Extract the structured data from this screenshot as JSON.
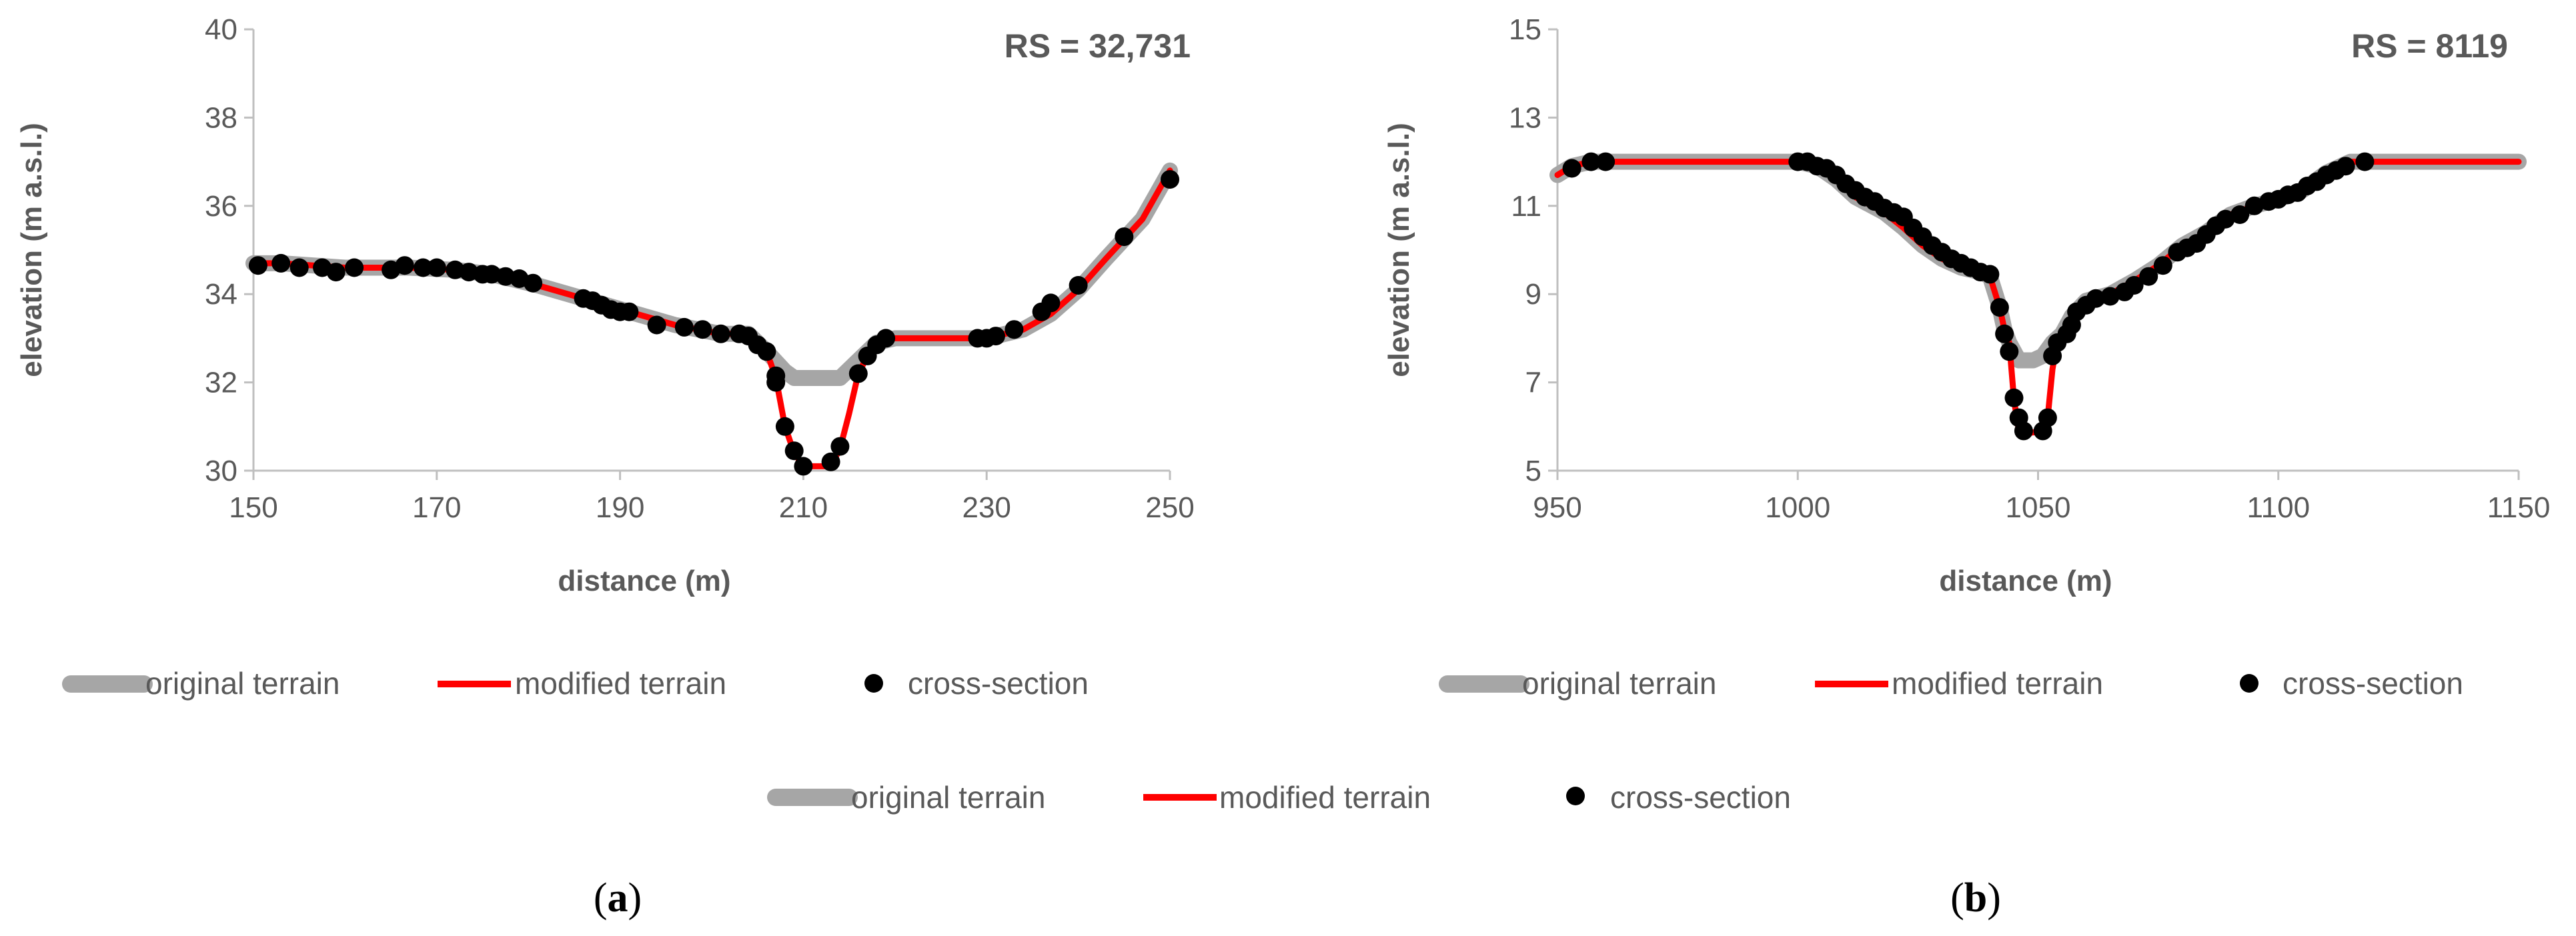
{
  "colors": {
    "original_terrain": "#a6a6a6",
    "modified_terrain": "#ff0000",
    "cross_section": "#000000",
    "axis": "#bfbfbf",
    "text": "#595959"
  },
  "shared_legend": {
    "original": "original terrain",
    "modified": "modified terrain",
    "points": "cross-section"
  },
  "chart_data": [
    {
      "type": "line",
      "panel_label": "a",
      "annotation": "RS = 32,731",
      "xlabel": "distance (m)",
      "ylabel": "elevation (m a.s.l.)",
      "xlim": [
        150,
        250
      ],
      "ylim": [
        30,
        40
      ],
      "x_ticks": [
        150,
        170,
        190,
        210,
        230,
        250
      ],
      "y_ticks": [
        30,
        32,
        34,
        36,
        38,
        40
      ],
      "grid": false,
      "legend": {
        "position": "bottom",
        "entries": [
          "original terrain",
          "modified terrain",
          "cross-section"
        ]
      },
      "series": [
        {
          "name": "original terrain",
          "kind": "line",
          "points": [
            [
              150,
              34.7
            ],
            [
              153,
              34.7
            ],
            [
              160,
              34.6
            ],
            [
              167,
              34.6
            ],
            [
              172,
              34.55
            ],
            [
              176,
              34.45
            ],
            [
              181,
              34.2
            ],
            [
              186,
              33.9
            ],
            [
              191,
              33.6
            ],
            [
              196,
              33.3
            ],
            [
              201,
              33.1
            ],
            [
              204,
              33.1
            ],
            [
              206,
              32.7
            ],
            [
              208,
              32.25
            ],
            [
              209,
              32.1
            ],
            [
              214,
              32.1
            ],
            [
              216,
              32.5
            ],
            [
              218,
              32.9
            ],
            [
              220,
              33.0
            ],
            [
              230,
              33.0
            ],
            [
              234,
              33.2
            ],
            [
              237,
              33.55
            ],
            [
              240,
              34.1
            ],
            [
              243,
              34.8
            ],
            [
              247,
              35.7
            ],
            [
              250,
              36.8
            ]
          ]
        },
        {
          "name": "modified terrain",
          "kind": "line",
          "points": [
            [
              150,
              34.7
            ],
            [
              153,
              34.7
            ],
            [
              160,
              34.6
            ],
            [
              167,
              34.6
            ],
            [
              172,
              34.55
            ],
            [
              176,
              34.45
            ],
            [
              181,
              34.2
            ],
            [
              186,
              33.9
            ],
            [
              191,
              33.6
            ],
            [
              196,
              33.3
            ],
            [
              201,
              33.1
            ],
            [
              204,
              33.1
            ],
            [
              206,
              32.7
            ],
            [
              207,
              32.1
            ],
            [
              208,
              31.0
            ],
            [
              209,
              30.4
            ],
            [
              210,
              30.1
            ],
            [
              213,
              30.1
            ],
            [
              214,
              30.5
            ],
            [
              215,
              31.3
            ],
            [
              216,
              32.2
            ],
            [
              217,
              32.6
            ],
            [
              218,
              32.85
            ],
            [
              219,
              33.0
            ],
            [
              230,
              33.0
            ],
            [
              234,
              33.2
            ],
            [
              237,
              33.55
            ],
            [
              240,
              34.1
            ],
            [
              243,
              34.8
            ],
            [
              247,
              35.7
            ],
            [
              250,
              36.8
            ]
          ]
        },
        {
          "name": "cross-section",
          "kind": "scatter",
          "points": [
            [
              150.5,
              34.65
            ],
            [
              153,
              34.7
            ],
            [
              155,
              34.6
            ],
            [
              157.5,
              34.6
            ],
            [
              159,
              34.5
            ],
            [
              161,
              34.6
            ],
            [
              165,
              34.55
            ],
            [
              166.5,
              34.65
            ],
            [
              168.5,
              34.6
            ],
            [
              170,
              34.6
            ],
            [
              172,
              34.55
            ],
            [
              173.5,
              34.5
            ],
            [
              175,
              34.45
            ],
            [
              176,
              34.45
            ],
            [
              177.5,
              34.4
            ],
            [
              179,
              34.35
            ],
            [
              180.5,
              34.25
            ],
            [
              186,
              33.9
            ],
            [
              187,
              33.85
            ],
            [
              188,
              33.75
            ],
            [
              189,
              33.65
            ],
            [
              190,
              33.6
            ],
            [
              191,
              33.6
            ],
            [
              194,
              33.3
            ],
            [
              197,
              33.25
            ],
            [
              199,
              33.2
            ],
            [
              201,
              33.1
            ],
            [
              203,
              33.1
            ],
            [
              204,
              33.05
            ],
            [
              205,
              32.85
            ],
            [
              206,
              32.7
            ],
            [
              207,
              32.15
            ],
            [
              207,
              32.0
            ],
            [
              208,
              31.0
            ],
            [
              209,
              30.45
            ],
            [
              210,
              30.1
            ],
            [
              213,
              30.2
            ],
            [
              214,
              30.55
            ],
            [
              216,
              32.2
            ],
            [
              217,
              32.6
            ],
            [
              218,
              32.85
            ],
            [
              219,
              33.0
            ],
            [
              229,
              33.0
            ],
            [
              230,
              33.0
            ],
            [
              231,
              33.05
            ],
            [
              233,
              33.2
            ],
            [
              236,
              33.6
            ],
            [
              237,
              33.8
            ],
            [
              240,
              34.2
            ],
            [
              245,
              35.3
            ],
            [
              250,
              36.6
            ]
          ]
        }
      ]
    },
    {
      "type": "line",
      "panel_label": "b",
      "annotation": "RS = 8119",
      "xlabel": "distance (m)",
      "ylabel": "elevation (m a.s.l.)",
      "xlim": [
        950,
        1150
      ],
      "ylim": [
        5,
        15
      ],
      "x_ticks": [
        950,
        1000,
        1050,
        1100,
        1150
      ],
      "y_ticks": [
        5,
        7,
        9,
        11,
        13,
        15
      ],
      "grid": false,
      "legend": {
        "position": "bottom",
        "entries": [
          "original terrain",
          "modified terrain",
          "cross-section"
        ]
      },
      "series": [
        {
          "name": "original terrain",
          "kind": "line",
          "points": [
            [
              950,
              11.7
            ],
            [
              953,
              11.9
            ],
            [
              957,
              12.0
            ],
            [
              1000,
              12.0
            ],
            [
              1004,
              11.9
            ],
            [
              1008,
              11.6
            ],
            [
              1012,
              11.2
            ],
            [
              1018,
              10.85
            ],
            [
              1022,
              10.5
            ],
            [
              1026,
              10.1
            ],
            [
              1030,
              9.8
            ],
            [
              1034,
              9.6
            ],
            [
              1038,
              9.5
            ],
            [
              1040,
              9.4
            ],
            [
              1042,
              8.7
            ],
            [
              1043,
              8.2
            ],
            [
              1044,
              7.9
            ],
            [
              1046,
              7.5
            ],
            [
              1049,
              7.5
            ],
            [
              1051,
              7.6
            ],
            [
              1053,
              7.9
            ],
            [
              1055,
              8.1
            ],
            [
              1057,
              8.5
            ],
            [
              1060,
              8.85
            ],
            [
              1065,
              9.0
            ],
            [
              1070,
              9.3
            ],
            [
              1075,
              9.65
            ],
            [
              1080,
              10.1
            ],
            [
              1085,
              10.4
            ],
            [
              1090,
              10.8
            ],
            [
              1095,
              11.0
            ],
            [
              1100,
              11.15
            ],
            [
              1105,
              11.35
            ],
            [
              1110,
              11.75
            ],
            [
              1115,
              12.0
            ],
            [
              1150,
              12.0
            ]
          ]
        },
        {
          "name": "modified terrain",
          "kind": "line",
          "points": [
            [
              950,
              11.7
            ],
            [
              953,
              11.9
            ],
            [
              957,
              12.0
            ],
            [
              1000,
              12.0
            ],
            [
              1004,
              11.9
            ],
            [
              1008,
              11.6
            ],
            [
              1012,
              11.2
            ],
            [
              1018,
              10.85
            ],
            [
              1022,
              10.5
            ],
            [
              1026,
              10.1
            ],
            [
              1030,
              9.8
            ],
            [
              1034,
              9.6
            ],
            [
              1038,
              9.5
            ],
            [
              1040,
              9.4
            ],
            [
              1042,
              8.7
            ],
            [
              1043,
              8.2
            ],
            [
              1044,
              7.9
            ],
            [
              1045,
              6.6
            ],
            [
              1046,
              5.9
            ],
            [
              1048,
              5.85
            ],
            [
              1051,
              5.9
            ],
            [
              1052,
              6.2
            ],
            [
              1053,
              7.3
            ],
            [
              1054,
              7.9
            ],
            [
              1055,
              8.1
            ],
            [
              1057,
              8.5
            ],
            [
              1060,
              8.85
            ],
            [
              1065,
              9.0
            ],
            [
              1070,
              9.3
            ],
            [
              1075,
              9.65
            ],
            [
              1080,
              10.1
            ],
            [
              1085,
              10.4
            ],
            [
              1090,
              10.8
            ],
            [
              1095,
              11.0
            ],
            [
              1100,
              11.15
            ],
            [
              1105,
              11.35
            ],
            [
              1110,
              11.75
            ],
            [
              1115,
              12.0
            ],
            [
              1150,
              12.0
            ]
          ]
        },
        {
          "name": "cross-section",
          "kind": "scatter",
          "points": [
            [
              953,
              11.85
            ],
            [
              957,
              12.0
            ],
            [
              960,
              12.0
            ],
            [
              1000,
              12.0
            ],
            [
              1002,
              12.0
            ],
            [
              1004,
              11.9
            ],
            [
              1006,
              11.85
            ],
            [
              1008,
              11.7
            ],
            [
              1010,
              11.5
            ],
            [
              1012,
              11.35
            ],
            [
              1014,
              11.2
            ],
            [
              1016,
              11.1
            ],
            [
              1018,
              10.95
            ],
            [
              1020,
              10.85
            ],
            [
              1022,
              10.75
            ],
            [
              1024,
              10.5
            ],
            [
              1026,
              10.3
            ],
            [
              1028,
              10.1
            ],
            [
              1030,
              9.95
            ],
            [
              1032,
              9.8
            ],
            [
              1034,
              9.7
            ],
            [
              1036,
              9.6
            ],
            [
              1038,
              9.5
            ],
            [
              1040,
              9.45
            ],
            [
              1042,
              8.7
            ],
            [
              1043,
              8.1
            ],
            [
              1044,
              7.7
            ],
            [
              1045,
              6.65
            ],
            [
              1046,
              6.2
            ],
            [
              1047,
              5.9
            ],
            [
              1051,
              5.9
            ],
            [
              1052,
              6.2
            ],
            [
              1053,
              7.6
            ],
            [
              1054,
              7.9
            ],
            [
              1056,
              8.1
            ],
            [
              1057,
              8.3
            ],
            [
              1058,
              8.6
            ],
            [
              1060,
              8.75
            ],
            [
              1062,
              8.9
            ],
            [
              1065,
              8.95
            ],
            [
              1068,
              9.05
            ],
            [
              1070,
              9.2
            ],
            [
              1073,
              9.4
            ],
            [
              1076,
              9.65
            ],
            [
              1079,
              9.95
            ],
            [
              1081,
              10.05
            ],
            [
              1083,
              10.15
            ],
            [
              1085,
              10.35
            ],
            [
              1087,
              10.55
            ],
            [
              1089,
              10.7
            ],
            [
              1092,
              10.8
            ],
            [
              1095,
              11.0
            ],
            [
              1098,
              11.1
            ],
            [
              1100,
              11.15
            ],
            [
              1102,
              11.25
            ],
            [
              1104,
              11.3
            ],
            [
              1106,
              11.45
            ],
            [
              1108,
              11.55
            ],
            [
              1110,
              11.7
            ],
            [
              1112,
              11.8
            ],
            [
              1114,
              11.9
            ],
            [
              1118,
              12.0
            ]
          ]
        }
      ]
    }
  ]
}
